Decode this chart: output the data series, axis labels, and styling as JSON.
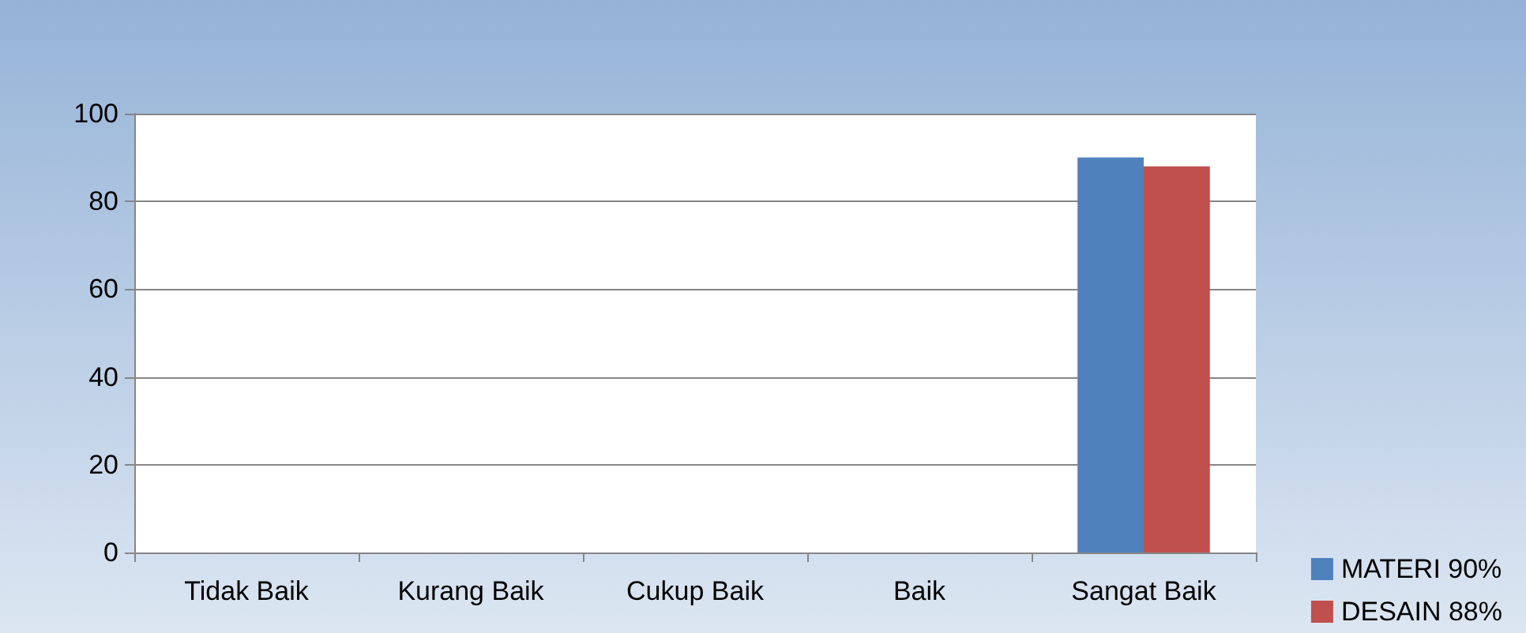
{
  "chart_data": {
    "type": "bar",
    "categories": [
      "Tidak Baik",
      "Kurang Baik",
      "Cukup Baik",
      "Baik",
      "Sangat Baik"
    ],
    "series": [
      {
        "name": "MATERI 90%",
        "color": "#4f81bd",
        "values": [
          0,
          0,
          0,
          0,
          90
        ]
      },
      {
        "name": "DESAIN 88%",
        "color": "#c0504d",
        "values": [
          0,
          0,
          0,
          0,
          88
        ]
      }
    ],
    "ylim": [
      0,
      100
    ],
    "yticks": [
      0,
      20,
      40,
      60,
      80,
      100
    ],
    "grid": "y",
    "legend": "right"
  }
}
